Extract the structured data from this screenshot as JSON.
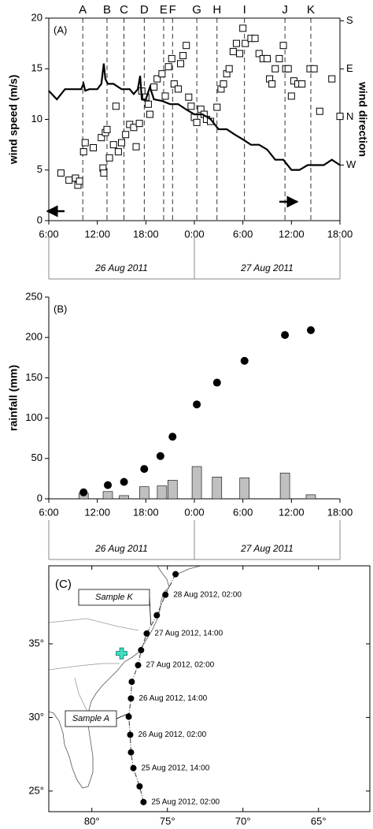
{
  "chart_data": [
    {
      "type": "scatter",
      "panel_label": "(A)",
      "ylabel": "wind speed (m/s)",
      "y2label": "wind direction",
      "xlim": [
        6,
        42
      ],
      "xticks": [
        {
          "value": 6,
          "label": "6:00"
        },
        {
          "value": 12,
          "label": "12:00"
        },
        {
          "value": 18,
          "label": "18:00"
        },
        {
          "value": 24,
          "label": "0:00"
        },
        {
          "value": 30,
          "label": "6:00"
        },
        {
          "value": 36,
          "label": "12:00"
        },
        {
          "value": 42,
          "label": "18:00"
        }
      ],
      "ylim": [
        0,
        20
      ],
      "yticks": [
        0,
        5,
        10,
        15,
        20
      ],
      "y2lim": [
        166,
        545
      ],
      "y2ticks": [
        {
          "value": 270,
          "label": "W"
        },
        {
          "value": 360,
          "label": "N"
        },
        {
          "value": 450,
          "label": "E"
        },
        {
          "value": 540,
          "label": "S"
        }
      ],
      "date_labels": [
        "26 Aug 2011",
        "27 Aug 2011"
      ],
      "event_lines": {
        "labels": [
          "A",
          "B",
          "C",
          "D",
          "E",
          "F",
          "G",
          "H",
          "I",
          "J",
          "K"
        ],
        "x": [
          10.2,
          13.2,
          15.3,
          17.8,
          20.2,
          21.3,
          24.3,
          26.8,
          30.2,
          35.2,
          38.4
        ]
      },
      "series": [
        {
          "type": "scatter",
          "marker": "square",
          "color": "#000000",
          "x": [
            7.5,
            8.5,
            9.3,
            9.6,
            9.8,
            10.3,
            10.5,
            11.5,
            12.5,
            12.7,
            12.8,
            13,
            13.2,
            13.5,
            14,
            14.3,
            14.6,
            15,
            15.5,
            16,
            16.5,
            16.8,
            17.2,
            17.5,
            18,
            18.3,
            18.5,
            19,
            19.4,
            20,
            20.4,
            20.8,
            21.2,
            21.5,
            22,
            22.3,
            22.6,
            23,
            23.3,
            23.6,
            24,
            24.3,
            24.8,
            25.2,
            25.5,
            26,
            26.8,
            27.3,
            27.6,
            28,
            28.3,
            28.8,
            29.2,
            29.6,
            30,
            30.3,
            31,
            31.5,
            32,
            32.5,
            33,
            33.3,
            33.6,
            34,
            34.5,
            35,
            35.3,
            35.6,
            36,
            36.3,
            36.8,
            37.3,
            38.3,
            38.8,
            39.5,
            41,
            42
          ],
          "values": [
            4.7,
            4,
            4.2,
            3.5,
            3.9,
            6.8,
            7.7,
            7.2,
            8.2,
            5.2,
            4.7,
            8.7,
            9,
            6.2,
            7.5,
            11.3,
            6.8,
            7.7,
            8.5,
            9.5,
            9.2,
            7.3,
            9.6,
            12.8,
            12.2,
            11.5,
            10.5,
            13.2,
            14,
            14.5,
            12.3,
            15.2,
            16,
            13.5,
            13,
            15.5,
            16.3,
            17.3,
            12.2,
            11.3,
            10.2,
            9.7,
            11,
            10.5,
            10,
            9.8,
            11.2,
            13,
            13.5,
            14.5,
            15,
            16.7,
            17.5,
            16.5,
            19,
            17.5,
            18,
            18,
            16.5,
            16,
            16,
            14,
            13.5,
            15,
            16,
            17.3,
            15,
            15,
            12.3,
            13.8,
            13.5,
            13.5,
            15,
            15,
            10.8,
            14,
            10.3
          ]
        },
        {
          "type": "line",
          "axis": "y2",
          "color": "#000000",
          "x": [
            6,
            7,
            8,
            9,
            10,
            10.3,
            10.5,
            11,
            12,
            12.5,
            12.8,
            13,
            13.3,
            14,
            15,
            16,
            16.5,
            17,
            17.3,
            17.5,
            18,
            18.5,
            19,
            20,
            21,
            22,
            23,
            24,
            25,
            26,
            27,
            28,
            29,
            30,
            31,
            32,
            33,
            34,
            35,
            36,
            37,
            38,
            39,
            40,
            41,
            42
          ],
          "values": [
            409,
            393,
            412,
            412,
            412,
            422,
            409,
            412,
            412,
            422,
            460,
            431,
            422,
            422,
            412,
            412,
            403,
            412,
            437,
            393,
            393,
            416,
            393,
            390,
            384,
            384,
            374,
            365,
            365,
            356,
            337,
            337,
            327,
            318,
            308,
            308,
            299,
            280,
            280,
            261,
            261,
            270,
            270,
            270,
            280,
            270
          ]
        }
      ]
    },
    {
      "type": "bar",
      "panel_label": "(B)",
      "ylabel": "rainfall (mm)",
      "xlim": [
        6,
        42
      ],
      "xticks": [
        {
          "value": 6,
          "label": "6:00"
        },
        {
          "value": 12,
          "label": "12:00"
        },
        {
          "value": 18,
          "label": "18:00"
        },
        {
          "value": 24,
          "label": "0:00"
        },
        {
          "value": 30,
          "label": "6:00"
        },
        {
          "value": 36,
          "label": "12:00"
        },
        {
          "value": 42,
          "label": "18:00"
        }
      ],
      "ylim": [
        0,
        250
      ],
      "yticks": [
        0,
        50,
        100,
        150,
        200,
        250
      ],
      "date_labels": [
        "26 Aug 2011",
        "27 Aug 2011"
      ],
      "series": [
        {
          "type": "bar",
          "color": "#c0c0c0",
          "x": [
            10.3,
            13.3,
            15.3,
            17.8,
            20,
            21.3,
            24.3,
            26.8,
            30.2,
            35.2,
            38.4
          ],
          "values": [
            7,
            9,
            4,
            15,
            16,
            23,
            40,
            27,
            26,
            32,
            5
          ]
        },
        {
          "type": "scatter",
          "marker": "circle",
          "color": "#000000",
          "x": [
            10.3,
            13.3,
            15.3,
            17.8,
            19.8,
            21.3,
            24.3,
            26.8,
            30.2,
            35.2,
            38.4
          ],
          "values": [
            8,
            17,
            21,
            37,
            53,
            77,
            117,
            144,
            171,
            203,
            209
          ]
        }
      ]
    },
    {
      "type": "map",
      "panel_label": "(C)",
      "xlim": [
        -82.85,
        -61.6
      ],
      "xticks": [
        {
          "value": -80,
          "label": "80°"
        },
        {
          "value": -75,
          "label": "75°"
        },
        {
          "value": -70,
          "label": "70°"
        },
        {
          "value": -65,
          "label": "65°"
        }
      ],
      "ylim": [
        23.6,
        40.3
      ],
      "yticks": [
        {
          "value": 25,
          "label": "25°"
        },
        {
          "value": 30,
          "label": "30°"
        },
        {
          "value": 35,
          "label": "35°"
        }
      ],
      "track": {
        "x": [
          -76.58,
          -76.84,
          -77.25,
          -77.41,
          -77.46,
          -77.56,
          -77.41,
          -77.36,
          -76.94,
          -76.74,
          -76.37,
          -75.7,
          -75.13,
          -74.46
        ],
        "values": [
          24.25,
          25.32,
          26.56,
          27.63,
          28.82,
          30.05,
          31.29,
          32.42,
          33.55,
          34.57,
          35.7,
          36.94,
          38.33,
          39.73
        ],
        "labels": [
          "25 Aug 2012, 02:00",
          null,
          "25 Aug 2012, 14:00",
          null,
          "26 Aug 2012, 02:00",
          null,
          "26 Aug 2012, 14:00",
          null,
          "27 Aug 2012, 02:00",
          null,
          "27 Aug 2012, 14:00",
          null,
          "28 Aug 2012, 02:00",
          null
        ]
      },
      "site": {
        "x": -78.03,
        "y": 34.35,
        "color": "#3ee0c0"
      },
      "callouts": [
        {
          "label": "Sample K",
          "x": -76.1,
          "y": 36.3
        },
        {
          "label": "Sample A",
          "x": -77.5,
          "y": 30.3
        }
      ]
    }
  ]
}
